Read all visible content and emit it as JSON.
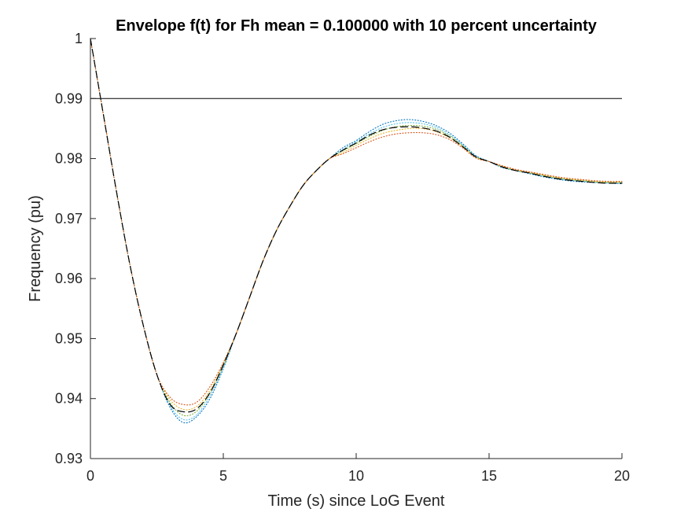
{
  "chart_data": {
    "type": "line",
    "title": "Envelope f(t) for Fh mean = 0.100000 with 10 percent uncertainty",
    "xlabel": "Time (s) since LoG Event",
    "ylabel": "Frequency (pu)",
    "xlim": [
      0,
      20
    ],
    "ylim": [
      0.93,
      1.0
    ],
    "xticks": [
      0,
      5,
      10,
      15,
      20
    ],
    "xtick_labels": [
      "0",
      "5",
      "10",
      "15",
      "20"
    ],
    "yticks": [
      0.93,
      0.94,
      0.95,
      0.96,
      0.97,
      0.98,
      0.99,
      1.0
    ],
    "ytick_labels": [
      "0.93",
      "0.94",
      "0.95",
      "0.96",
      "0.97",
      "0.98",
      "0.99",
      "1"
    ],
    "grid": false,
    "threshold": {
      "y": 0.99,
      "color": "#000000"
    },
    "x": [
      0,
      0.5,
      1,
      1.5,
      2,
      2.5,
      3,
      3.5,
      4,
      4.5,
      5,
      5.5,
      6,
      6.5,
      7,
      7.5,
      8,
      8.5,
      9,
      9.5,
      10,
      10.5,
      11,
      11.5,
      12,
      12.5,
      13,
      13.5,
      14,
      14.5,
      15,
      15.5,
      16,
      16.5,
      17,
      17.5,
      18,
      18.5,
      19,
      19.5,
      20
    ],
    "series": [
      {
        "style": "dotted",
        "color": "#0072BD",
        "values": [
          1.0,
          0.987,
          0.974,
          0.962,
          0.952,
          0.944,
          0.9385,
          0.936,
          0.937,
          0.94,
          0.945,
          0.951,
          0.957,
          0.963,
          0.968,
          0.972,
          0.9755,
          0.978,
          0.98,
          0.9818,
          0.983,
          0.9845,
          0.9857,
          0.9863,
          0.9865,
          0.9862,
          0.9855,
          0.9843,
          0.9825,
          0.9805,
          0.9795,
          0.9785,
          0.978,
          0.9775,
          0.977,
          0.9766,
          0.9763,
          0.9761,
          0.976,
          0.9759,
          0.9758
        ]
      },
      {
        "style": "dotted",
        "color": "#4DBEEE",
        "values": [
          1.0,
          0.987,
          0.974,
          0.962,
          0.952,
          0.944,
          0.9388,
          0.9365,
          0.9373,
          0.9405,
          0.9452,
          0.951,
          0.957,
          0.963,
          0.968,
          0.972,
          0.9755,
          0.978,
          0.98,
          0.9815,
          0.9828,
          0.9841,
          0.9852,
          0.9858,
          0.986,
          0.9858,
          0.9852,
          0.984,
          0.9823,
          0.9804,
          0.9795,
          0.9786,
          0.978,
          0.9776,
          0.9771,
          0.9767,
          0.9764,
          0.9762,
          0.976,
          0.9759,
          0.9759
        ]
      },
      {
        "style": "dotted",
        "color": "#77AC30",
        "values": [
          1.0,
          0.987,
          0.974,
          0.962,
          0.952,
          0.944,
          0.9393,
          0.9372,
          0.9379,
          0.9409,
          0.9455,
          0.951,
          0.957,
          0.963,
          0.968,
          0.972,
          0.9755,
          0.978,
          0.98,
          0.9813,
          0.9825,
          0.9837,
          0.9847,
          0.9853,
          0.9855,
          0.9854,
          0.9849,
          0.9838,
          0.9822,
          0.9803,
          0.9795,
          0.9786,
          0.978,
          0.9776,
          0.9772,
          0.9768,
          0.9765,
          0.9763,
          0.9761,
          0.976,
          0.976
        ]
      },
      {
        "style": "dotted",
        "color": "#EDB120",
        "values": [
          1.0,
          0.987,
          0.974,
          0.962,
          0.952,
          0.944,
          0.9398,
          0.9382,
          0.9387,
          0.9414,
          0.9458,
          0.951,
          0.957,
          0.963,
          0.968,
          0.972,
          0.9755,
          0.978,
          0.98,
          0.981,
          0.9822,
          0.9833,
          0.9842,
          0.9847,
          0.985,
          0.985,
          0.9845,
          0.9835,
          0.982,
          0.9802,
          0.9795,
          0.9787,
          0.9781,
          0.9777,
          0.9773,
          0.9769,
          0.9766,
          0.9764,
          0.9762,
          0.9761,
          0.9761
        ]
      },
      {
        "style": "dotted",
        "color": "#D95319",
        "values": [
          1.0,
          0.987,
          0.974,
          0.962,
          0.952,
          0.944,
          0.9402,
          0.939,
          0.9394,
          0.942,
          0.946,
          0.951,
          0.957,
          0.963,
          0.968,
          0.972,
          0.9755,
          0.978,
          0.98,
          0.9808,
          0.9818,
          0.9828,
          0.9836,
          0.9841,
          0.9843,
          0.9843,
          0.984,
          0.9832,
          0.9818,
          0.9801,
          0.9795,
          0.9788,
          0.9782,
          0.9778,
          0.9774,
          0.977,
          0.9767,
          0.9765,
          0.9763,
          0.9762,
          0.9762
        ]
      },
      {
        "style": "dashed",
        "color": "#000000",
        "values": [
          1.0,
          0.987,
          0.974,
          0.962,
          0.952,
          0.944,
          0.939,
          0.9378,
          0.9383,
          0.941,
          0.9456,
          0.951,
          0.957,
          0.963,
          0.968,
          0.972,
          0.9755,
          0.978,
          0.98,
          0.9814,
          0.9826,
          0.9839,
          0.9848,
          0.9852,
          0.9853,
          0.9851,
          0.9846,
          0.9836,
          0.982,
          0.9803,
          0.9795,
          0.9786,
          0.978,
          0.9776,
          0.9771,
          0.9767,
          0.9764,
          0.9762,
          0.976,
          0.9759,
          0.9759
        ]
      }
    ]
  }
}
